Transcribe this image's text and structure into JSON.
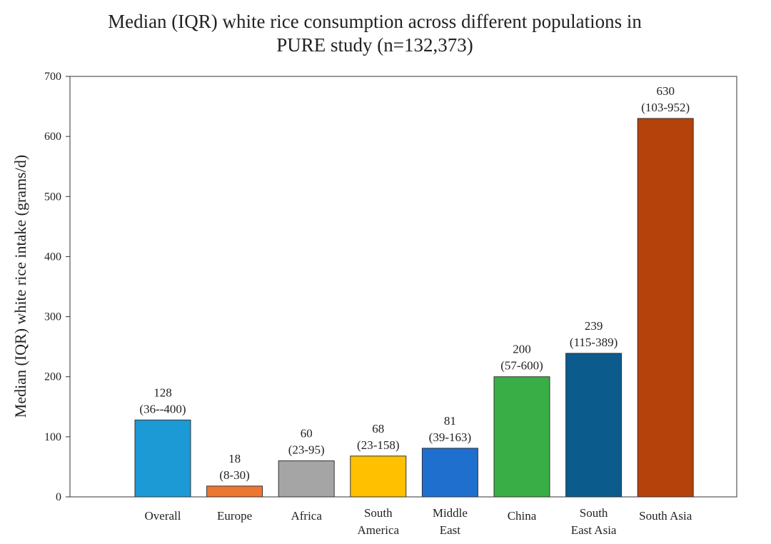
{
  "chart_data": {
    "type": "bar",
    "title_lines": [
      "Median (IQR) white rice consumption across different populations in",
      "PURE study (n=132,373)"
    ],
    "ylabel": "Median (IQR) white rice intake (grams/d)",
    "xlabel": "",
    "ylim": [
      0,
      700
    ],
    "yticks": [
      0,
      100,
      200,
      300,
      400,
      500,
      600,
      700
    ],
    "grid": false,
    "legend": "none",
    "categories": [
      [
        "Overall"
      ],
      [
        "Europe"
      ],
      [
        "Africa"
      ],
      [
        "South",
        "America"
      ],
      [
        "Middle",
        "East"
      ],
      [
        "China"
      ],
      [
        "South",
        "East Asia"
      ],
      [
        "South Asia"
      ]
    ],
    "values": [
      128,
      18,
      60,
      68,
      81,
      200,
      239,
      630
    ],
    "iqr_labels": [
      "(36--400)",
      "(8-30)",
      "(23-95)",
      "(23-158)",
      "(39-163)",
      "(57-600)",
      "(115-389)",
      "(103-952)"
    ],
    "colors": [
      "#1b9ad6",
      "#ed7630",
      "#a5a5a5",
      "#ffc000",
      "#1f6fcf",
      "#3aae46",
      "#0b5b8c",
      "#b5420a"
    ]
  }
}
